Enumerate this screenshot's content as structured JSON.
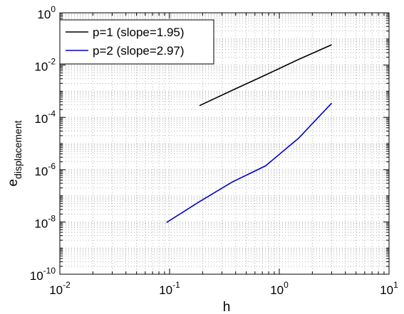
{
  "chart_data": {
    "type": "line",
    "xscale": "log",
    "yscale": "log",
    "xlim": [
      0.01,
      10
    ],
    "ylim": [
      1e-10,
      1
    ],
    "x_ticks": [
      {
        "value": 0.01,
        "base": "10",
        "exp": "-2"
      },
      {
        "value": 0.1,
        "base": "10",
        "exp": "-1"
      },
      {
        "value": 1,
        "base": "10",
        "exp": "0"
      },
      {
        "value": 10,
        "base": "10",
        "exp": "1"
      }
    ],
    "y_ticks": [
      {
        "value": 1e-10,
        "base": "10",
        "exp": "-10"
      },
      {
        "value": 1e-08,
        "base": "10",
        "exp": "-8"
      },
      {
        "value": 1e-06,
        "base": "10",
        "exp": "-6"
      },
      {
        "value": 0.0001,
        "base": "10",
        "exp": "-4"
      },
      {
        "value": 0.01,
        "base": "10",
        "exp": "-2"
      },
      {
        "value": 1,
        "base": "10",
        "exp": "0"
      }
    ],
    "xlabel": "h",
    "ylabel": {
      "main": "e",
      "sub": "displacement"
    },
    "grid": true,
    "legend_position": "top-left",
    "series": [
      {
        "name": "p=1 (slope=1.95)",
        "color": "#000000",
        "x": [
          0.1875,
          0.375,
          0.75,
          1.5,
          3.0
        ],
        "y": [
          0.00028,
          0.0011,
          0.0042,
          0.0165,
          0.06
        ]
      },
      {
        "name": "p=2 (slope=2.97)",
        "color": "#0000cc",
        "x": [
          0.09375,
          0.1875,
          0.375,
          0.75,
          1.5,
          3.0
        ],
        "y": [
          9.5e-09,
          6e-08,
          3.4e-07,
          1.4e-06,
          1.6e-05,
          0.00035
        ]
      }
    ]
  }
}
